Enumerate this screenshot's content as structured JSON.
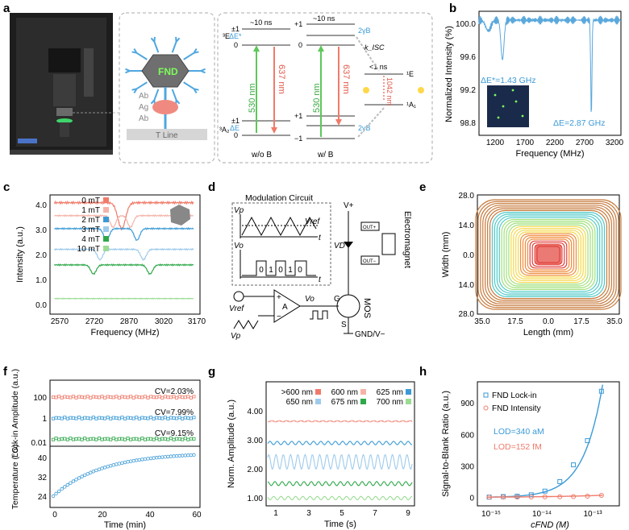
{
  "panel_letters": [
    "a",
    "b",
    "c",
    "d",
    "e",
    "f",
    "g",
    "h"
  ],
  "panel_a": {
    "fnd_label": "FND",
    "ab_labels": [
      "Ab",
      "Ag",
      "Ab"
    ],
    "tline_label": "T Line",
    "levels": {
      "E3": "³E",
      "A2_3": "³A₂",
      "E1": "¹E",
      "A1_1": "¹A₁",
      "pm1": "±1",
      "zero": "0",
      "plus1": "+1",
      "minus1": "−1",
      "ns10a": "~10 ns",
      "ns10b": "~10 ns",
      "ns1": "<1 ns",
      "dEstar": "ΔE*",
      "dE": "ΔE",
      "yB_top": "2γB",
      "yB_bot": "2γB",
      "kisc": "k_ISC"
    },
    "wavelengths": [
      "530 nm",
      "637 nm",
      "530 nm",
      "637 nm",
      "1042 nm"
    ],
    "conditions": [
      "w/o B",
      "w/ B"
    ]
  },
  "panel_b": {
    "ylabel": "Normalized Intensity (%)",
    "xlabel": "Frequency (MHz)",
    "xticks": [
      "1200",
      "1700",
      "2200",
      "2700",
      "3200"
    ],
    "yticks": [
      "100.0",
      "99.6",
      "99.2",
      "98.8"
    ],
    "annot1": "ΔE*=1.43 GHz",
    "annot2": "ΔE=2.87 GHz",
    "color": "#5aa8dc"
  },
  "panel_c": {
    "ylabel": "Intensity (a.u.)",
    "xlabel": "Frequency (MHz)",
    "xticks": [
      "2570",
      "2720",
      "2870",
      "3020",
      "3170"
    ],
    "yticks": [
      "4.0",
      "3.0",
      "2.0",
      "1.0",
      "0.0"
    ],
    "legend": [
      {
        "label": "0 mT",
        "color": "#f07a6a"
      },
      {
        "label": "1 mT",
        "color": "#f5b3a8"
      },
      {
        "label": "2 mT",
        "color": "#3b9ad6"
      },
      {
        "label": "3 mT",
        "color": "#9ecbec"
      },
      {
        "label": "4 mT",
        "color": "#2fa84a"
      },
      {
        "label": "10 mT",
        "color": "#9bdc94"
      }
    ]
  },
  "panel_d": {
    "title": "Modulation Circuit",
    "vp": "Vp",
    "vref": "Vref",
    "t": "t",
    "vo": "Vo",
    "bits": [
      "0",
      "1",
      "0",
      "1",
      "0"
    ],
    "amp": "A",
    "vplus": "V+",
    "vd": "VD",
    "g": "G",
    "s": "S",
    "mos": "MOS",
    "gnd": "GND/V−",
    "electromagnet": "Electromagnet",
    "out1": "OUT+",
    "out2": "OUT−",
    "vref_in": "Vref",
    "vp_in": "Vp",
    "plus": "+",
    "minus": "−"
  },
  "panel_e": {
    "ylabel": "Width (mm)",
    "xlabel": "Length (mm)",
    "xticks": [
      "35.0",
      "17.5",
      "0.0",
      "17.5",
      "35.0"
    ],
    "yticks": [
      "28.0",
      "14.0",
      "0.0",
      "14.0",
      "28.0"
    ]
  },
  "panel_f": {
    "top_ylabel": "Lock-in Amplitude (a.u.)",
    "bot_ylabel": "Temperature (°C)",
    "xlabel": "Time (min)",
    "xticks": [
      "0",
      "20",
      "40",
      "60"
    ],
    "top_yticks": [
      "100",
      "1",
      "0.01"
    ],
    "bot_yticks": [
      "40",
      "32",
      "24"
    ],
    "cv": [
      "CV=2.03%",
      "CV=7.99%",
      "CV=9.15%"
    ],
    "colors": [
      "#f07a6a",
      "#3b9ad6",
      "#2fa84a"
    ]
  },
  "panel_g": {
    "ylabel": "Norm. Amplitude (a.u.)",
    "xlabel": "Time (s)",
    "xticks": [
      "1",
      "3",
      "5",
      "7",
      "9"
    ],
    "yticks": [
      "4.00",
      "3.00",
      "2.00",
      "1.00"
    ],
    "legend": [
      {
        "label": ">600 nm",
        "color": "#f07a6a"
      },
      {
        "label": "600 nm",
        "color": "#f5b3a8"
      },
      {
        "label": "625 nm",
        "color": "#3b9ad6"
      },
      {
        "label": "650 nm",
        "color": "#9ecbec"
      },
      {
        "label": "675 nm",
        "color": "#2fa84a"
      },
      {
        "label": "700 nm",
        "color": "#9bdc94"
      }
    ]
  },
  "chart_data": [
    {
      "type": "scatter",
      "panel": "h",
      "xlabel": "cFND (M)",
      "ylabel": "Signal-to-Blank Ratio (a.u.)",
      "xscale": "log",
      "xticks": [
        "10⁻¹⁵",
        "10⁻¹⁴",
        "10⁻¹³"
      ],
      "yticks": [
        "900",
        "600",
        "300",
        "0"
      ],
      "ylim": [
        -80,
        1100
      ],
      "series": [
        {
          "name": "FND Lock-in",
          "color": "#3b9ad6",
          "x": [
            7e-16,
            1.4e-15,
            2.8e-15,
            5.6e-15,
            1.1e-14,
            2.3e-14,
            4.5e-14,
            9e-14,
            1.8e-13
          ],
          "y": [
            3,
            8,
            12,
            25,
            60,
            150,
            310,
            540,
            1010
          ]
        },
        {
          "name": "FND Intensity",
          "color": "#f07a6a",
          "x": [
            7e-16,
            1.4e-15,
            2.8e-15,
            5.6e-15,
            1.1e-14,
            2.3e-14,
            4.5e-14,
            9e-14,
            1.8e-13
          ],
          "y": [
            2,
            3,
            3,
            4,
            5,
            6,
            8,
            12,
            20
          ]
        }
      ],
      "annotations": [
        "LOD=340 aM",
        "LOD=152 fM"
      ]
    }
  ]
}
